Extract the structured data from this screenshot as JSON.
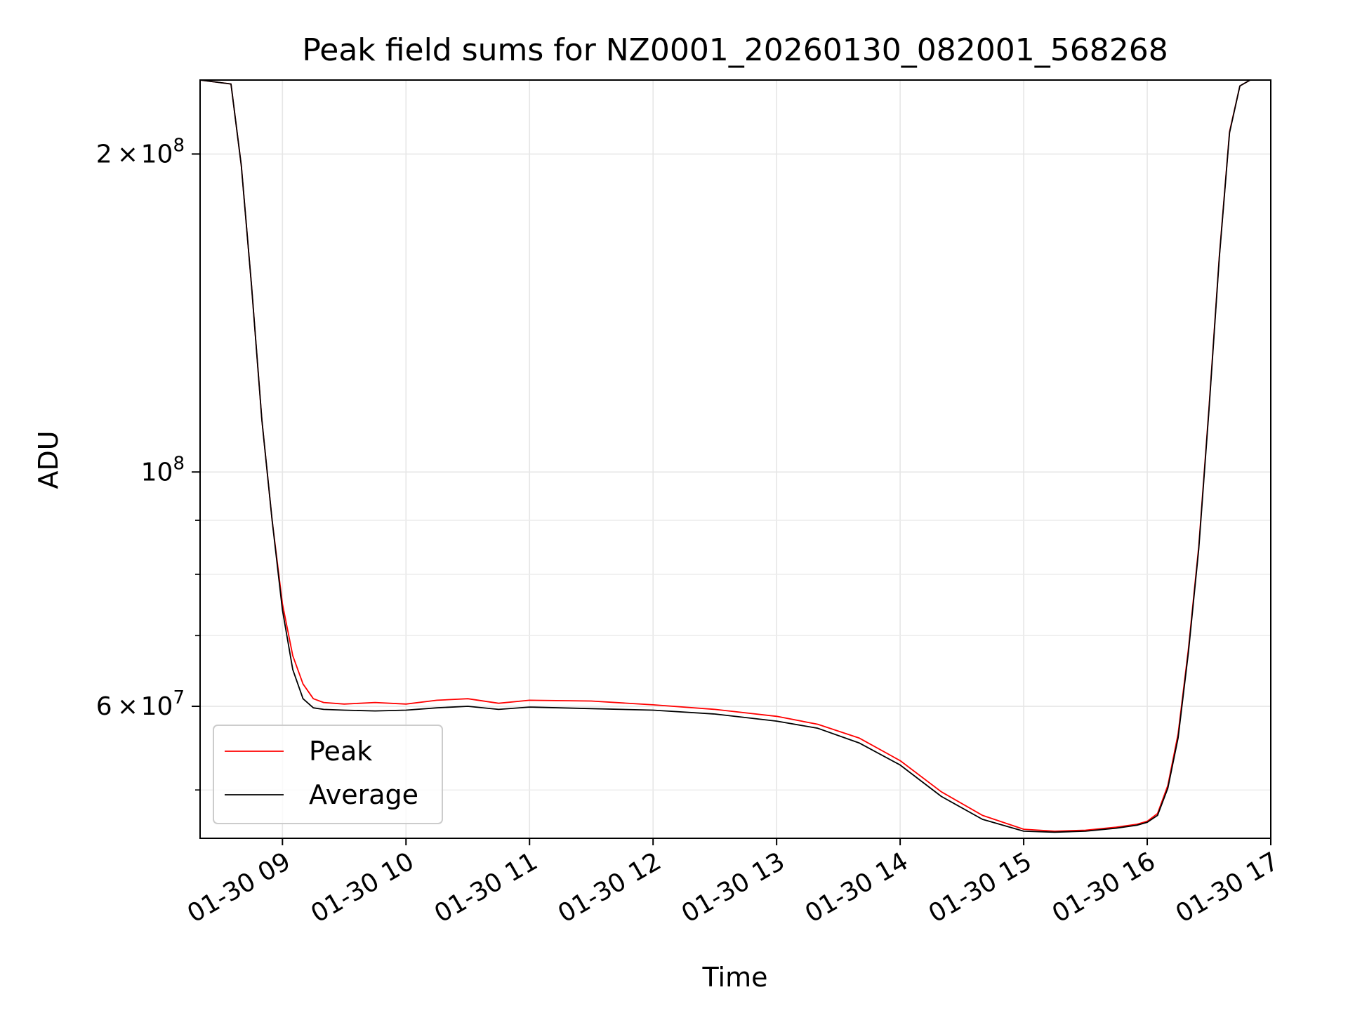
{
  "chart_data": {
    "type": "line",
    "title": "Peak field sums for NZ0001_20260130_082001_568268",
    "xlabel": "Time",
    "ylabel": "ADU",
    "xscale": "time",
    "yscale": "log",
    "xlim": [
      "2026-01-30 08:20",
      "2026-01-30 17:00"
    ],
    "ylim": [
      45000000,
      235000000
    ],
    "grid": true,
    "legend_position": "lower-left",
    "x_ticks": [
      {
        "value": "2026-01-30 09:00",
        "label": "01-30 09"
      },
      {
        "value": "2026-01-30 10:00",
        "label": "01-30 10"
      },
      {
        "value": "2026-01-30 11:00",
        "label": "01-30 11"
      },
      {
        "value": "2026-01-30 12:00",
        "label": "01-30 12"
      },
      {
        "value": "2026-01-30 13:00",
        "label": "01-30 13"
      },
      {
        "value": "2026-01-30 14:00",
        "label": "01-30 14"
      },
      {
        "value": "2026-01-30 15:00",
        "label": "01-30 15"
      },
      {
        "value": "2026-01-30 16:00",
        "label": "01-30 16"
      },
      {
        "value": "2026-01-30 17:00",
        "label": "01-30 17"
      }
    ],
    "y_major_ticks": [
      {
        "value": 60000000,
        "mantissa": "6",
        "base": "10",
        "exponent": "7"
      },
      {
        "value": 100000000,
        "mantissa": "",
        "base": "10",
        "exponent": "8"
      },
      {
        "value": 200000000,
        "mantissa": "2",
        "base": "10",
        "exponent": "8"
      }
    ],
    "y_minor_ticks": [
      50000000,
      70000000,
      80000000,
      90000000
    ],
    "series": [
      {
        "name": "Peak",
        "color": "#ff0000",
        "x": [
          "2026-01-30 08:20",
          "2026-01-30 08:35",
          "2026-01-30 08:40",
          "2026-01-30 08:45",
          "2026-01-30 08:50",
          "2026-01-30 08:55",
          "2026-01-30 09:00",
          "2026-01-30 09:05",
          "2026-01-30 09:10",
          "2026-01-30 09:15",
          "2026-01-30 09:20",
          "2026-01-30 09:30",
          "2026-01-30 09:45",
          "2026-01-30 10:00",
          "2026-01-30 10:15",
          "2026-01-30 10:30",
          "2026-01-30 10:45",
          "2026-01-30 11:00",
          "2026-01-30 11:30",
          "2026-01-30 12:00",
          "2026-01-30 12:30",
          "2026-01-30 13:00",
          "2026-01-30 13:20",
          "2026-01-30 13:40",
          "2026-01-30 14:00",
          "2026-01-30 14:20",
          "2026-01-30 14:40",
          "2026-01-30 15:00",
          "2026-01-30 15:15",
          "2026-01-30 15:30",
          "2026-01-30 15:45",
          "2026-01-30 15:55",
          "2026-01-30 16:00",
          "2026-01-30 16:05",
          "2026-01-30 16:10",
          "2026-01-30 16:15",
          "2026-01-30 16:20",
          "2026-01-30 16:25",
          "2026-01-30 16:30",
          "2026-01-30 16:35",
          "2026-01-30 16:40",
          "2026-01-30 16:45",
          "2026-01-30 16:50",
          "2026-01-30 17:00"
        ],
        "y": [
          235000000,
          233000000,
          195000000,
          150000000,
          112000000,
          90000000,
          75000000,
          67000000,
          63000000,
          61000000,
          60500000,
          60300000,
          60500000,
          60300000,
          60800000,
          61000000,
          60400000,
          60800000,
          60700000,
          60200000,
          59600000,
          58700000,
          57700000,
          56000000,
          53300000,
          49800000,
          47300000,
          45900000,
          45700000,
          45800000,
          46100000,
          46400000,
          46700000,
          47500000,
          50500000,
          56500000,
          68000000,
          85000000,
          115000000,
          160000000,
          210000000,
          232000000,
          235000000,
          235000000
        ]
      },
      {
        "name": "Average",
        "color": "#000000",
        "x": [
          "2026-01-30 08:20",
          "2026-01-30 08:35",
          "2026-01-30 08:40",
          "2026-01-30 08:45",
          "2026-01-30 08:50",
          "2026-01-30 08:55",
          "2026-01-30 09:00",
          "2026-01-30 09:05",
          "2026-01-30 09:10",
          "2026-01-30 09:15",
          "2026-01-30 09:20",
          "2026-01-30 09:30",
          "2026-01-30 09:45",
          "2026-01-30 10:00",
          "2026-01-30 10:15",
          "2026-01-30 10:30",
          "2026-01-30 10:45",
          "2026-01-30 11:00",
          "2026-01-30 11:30",
          "2026-01-30 12:00",
          "2026-01-30 12:30",
          "2026-01-30 13:00",
          "2026-01-30 13:20",
          "2026-01-30 13:40",
          "2026-01-30 14:00",
          "2026-01-30 14:20",
          "2026-01-30 14:40",
          "2026-01-30 15:00",
          "2026-01-30 15:15",
          "2026-01-30 15:30",
          "2026-01-30 15:45",
          "2026-01-30 15:55",
          "2026-01-30 16:00",
          "2026-01-30 16:05",
          "2026-01-30 16:10",
          "2026-01-30 16:15",
          "2026-01-30 16:20",
          "2026-01-30 16:25",
          "2026-01-30 16:30",
          "2026-01-30 16:35",
          "2026-01-30 16:40",
          "2026-01-30 16:45",
          "2026-01-30 16:50",
          "2026-01-30 17:00"
        ],
        "y": [
          235000000,
          233000000,
          195000000,
          150000000,
          112000000,
          90000000,
          74000000,
          65000000,
          61000000,
          59800000,
          59600000,
          59500000,
          59400000,
          59500000,
          59800000,
          60000000,
          59600000,
          59900000,
          59700000,
          59500000,
          59000000,
          58100000,
          57200000,
          55400000,
          52800000,
          49300000,
          46900000,
          45700000,
          45600000,
          45700000,
          46000000,
          46300000,
          46600000,
          47300000,
          50200000,
          56000000,
          67500000,
          84500000,
          114500000,
          159500000,
          209500000,
          232000000,
          235000000,
          235000000
        ]
      }
    ]
  }
}
